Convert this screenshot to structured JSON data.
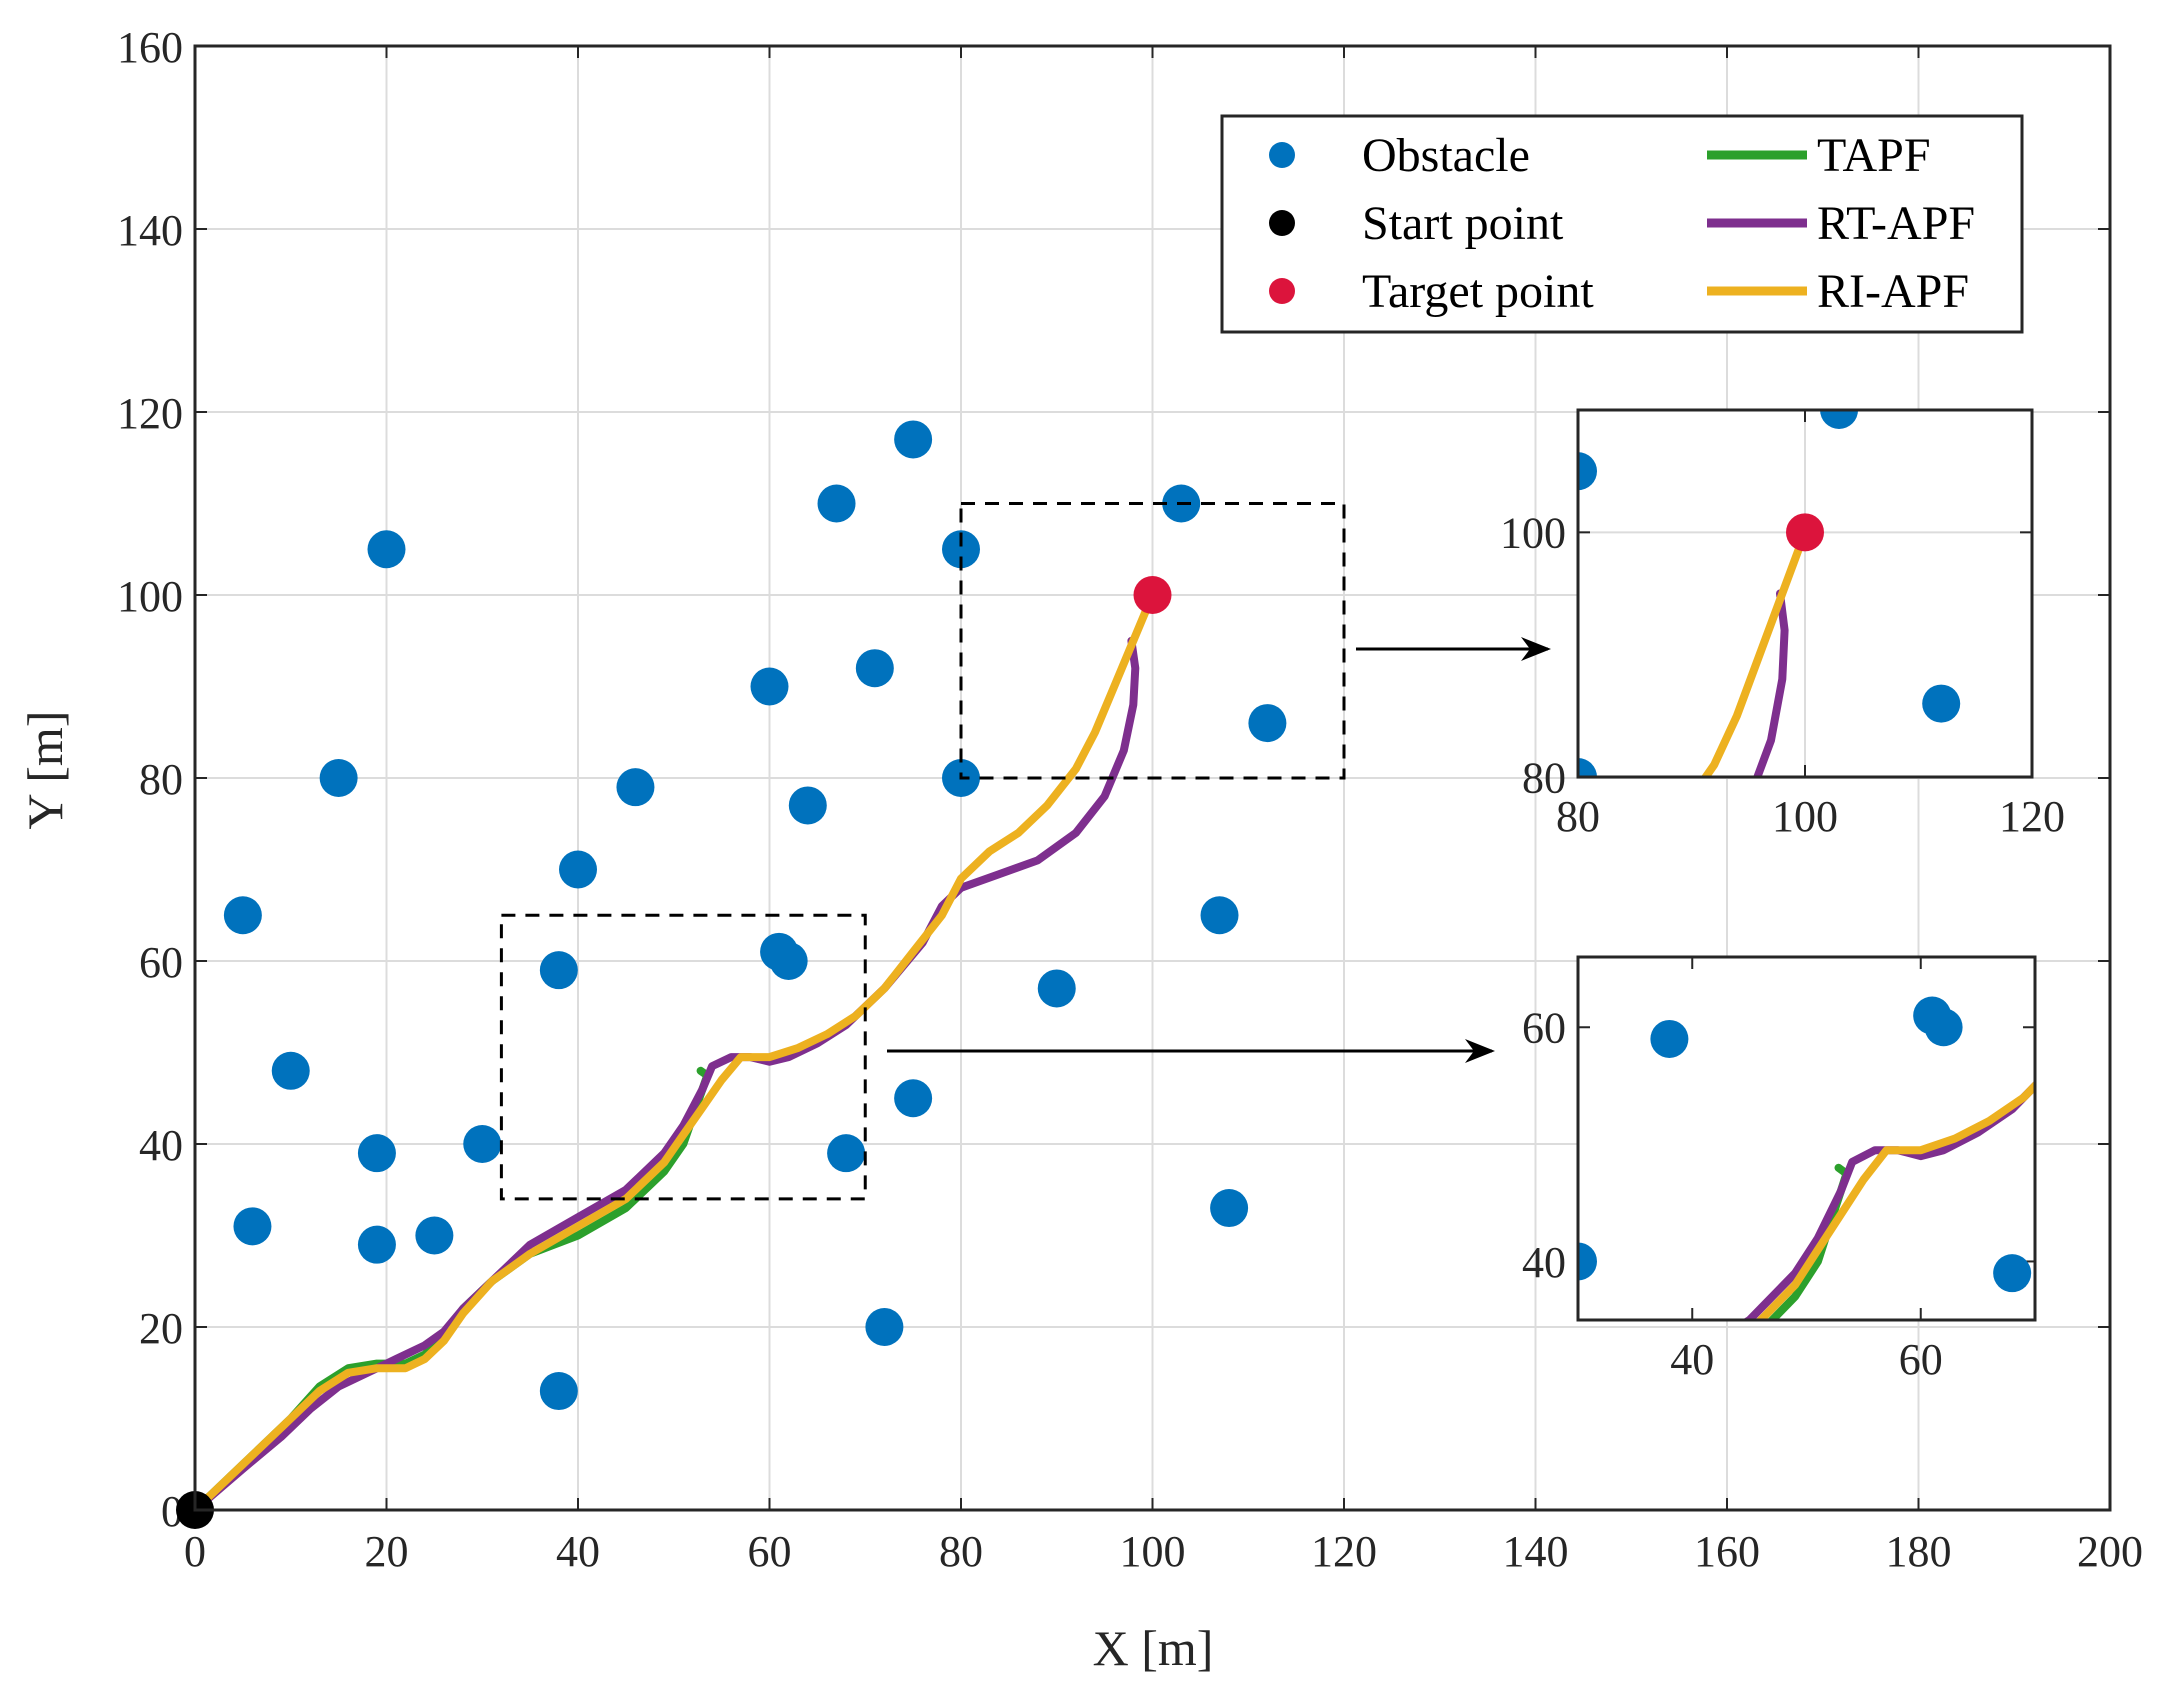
{
  "chart_data": {
    "type": "scatter",
    "xlabel": "X [m]",
    "ylabel": "Y [m]",
    "xlim": [
      0,
      200
    ],
    "ylim": [
      0,
      160
    ],
    "xticks": [
      0,
      20,
      40,
      60,
      80,
      100,
      120,
      140,
      160,
      180,
      200
    ],
    "yticks": [
      0,
      20,
      40,
      60,
      80,
      100,
      120,
      140,
      160
    ],
    "grid": true,
    "legend_position": "top-right",
    "obstacles": {
      "name": "Obstacle",
      "color": "#0072BD",
      "points": [
        [
          5,
          65
        ],
        [
          6,
          31
        ],
        [
          10,
          48
        ],
        [
          15,
          80
        ],
        [
          19,
          39
        ],
        [
          19,
          29
        ],
        [
          20,
          105
        ],
        [
          25,
          30
        ],
        [
          30,
          40
        ],
        [
          38,
          59
        ],
        [
          38,
          13
        ],
        [
          40,
          70
        ],
        [
          46,
          79
        ],
        [
          60,
          90
        ],
        [
          61,
          61
        ],
        [
          62,
          60
        ],
        [
          64,
          77
        ],
        [
          67,
          110
        ],
        [
          68,
          39
        ],
        [
          71,
          92
        ],
        [
          72,
          20
        ],
        [
          75,
          117
        ],
        [
          75,
          45
        ],
        [
          80,
          105
        ],
        [
          80,
          80
        ],
        [
          90,
          57
        ],
        [
          103,
          110
        ],
        [
          107,
          65
        ],
        [
          108,
          33
        ],
        [
          112,
          86
        ]
      ]
    },
    "start": {
      "name": "Start point",
      "color": "#000000",
      "point": [
        0,
        0
      ]
    },
    "target": {
      "name": "Target point",
      "color": "#DC143C",
      "point": [
        100,
        100
      ]
    },
    "series": [
      {
        "name": "TAPF",
        "color": "#2CA02C",
        "points": [
          [
            0,
            0
          ],
          [
            5,
            5
          ],
          [
            10,
            10
          ],
          [
            13,
            13.5
          ],
          [
            16,
            15.5
          ],
          [
            19,
            16
          ],
          [
            22,
            16
          ],
          [
            24,
            17
          ],
          [
            26,
            19
          ],
          [
            28,
            22
          ],
          [
            31,
            25
          ],
          [
            35,
            28
          ],
          [
            40,
            30
          ],
          [
            45,
            33
          ],
          [
            49,
            37
          ],
          [
            51,
            40
          ],
          [
            52,
            43
          ],
          [
            53,
            46
          ],
          [
            53.5,
            47.5
          ],
          [
            52.8,
            48
          ]
        ]
      },
      {
        "name": "RT-APF",
        "color": "#7E2F8E",
        "points": [
          [
            0,
            0
          ],
          [
            5,
            4.5
          ],
          [
            9,
            8
          ],
          [
            12,
            11
          ],
          [
            15,
            13.5
          ],
          [
            18,
            15
          ],
          [
            21,
            16.5
          ],
          [
            24,
            18
          ],
          [
            26,
            19.5
          ],
          [
            28,
            22
          ],
          [
            31,
            25
          ],
          [
            35,
            29
          ],
          [
            40,
            32
          ],
          [
            45,
            35
          ],
          [
            49,
            39
          ],
          [
            51,
            42
          ],
          [
            53,
            46
          ],
          [
            54,
            48.5
          ],
          [
            56,
            49.5
          ],
          [
            58,
            49.5
          ],
          [
            60,
            49
          ],
          [
            62,
            49.5
          ],
          [
            65,
            51
          ],
          [
            68,
            53
          ],
          [
            72,
            57
          ],
          [
            76,
            62
          ],
          [
            78,
            66
          ],
          [
            80,
            68
          ],
          [
            84,
            69.5
          ],
          [
            88,
            71
          ],
          [
            92,
            74
          ],
          [
            95,
            78
          ],
          [
            97,
            83
          ],
          [
            98,
            88
          ],
          [
            98.2,
            92
          ],
          [
            97.8,
            95
          ]
        ]
      },
      {
        "name": "RI-APF",
        "color": "#EDB120",
        "points": [
          [
            0,
            0
          ],
          [
            5,
            5
          ],
          [
            10,
            10
          ],
          [
            13,
            13
          ],
          [
            16,
            15
          ],
          [
            19,
            15.5
          ],
          [
            22,
            15.5
          ],
          [
            24,
            16.5
          ],
          [
            26,
            18.5
          ],
          [
            28,
            21.5
          ],
          [
            31,
            25
          ],
          [
            35,
            28
          ],
          [
            40,
            31
          ],
          [
            45,
            34
          ],
          [
            49,
            38
          ],
          [
            51,
            41
          ],
          [
            53,
            44
          ],
          [
            55,
            47
          ],
          [
            57,
            49.5
          ],
          [
            60,
            49.5
          ],
          [
            63,
            50.5
          ],
          [
            66,
            52
          ],
          [
            69,
            54
          ],
          [
            72,
            57
          ],
          [
            75,
            61
          ],
          [
            78,
            65
          ],
          [
            80,
            69
          ],
          [
            83,
            72
          ],
          [
            86,
            74
          ],
          [
            89,
            77
          ],
          [
            92,
            81
          ],
          [
            94,
            85
          ],
          [
            96,
            90
          ],
          [
            98,
            95
          ],
          [
            100,
            100
          ]
        ]
      }
    ],
    "zoom_boxes": [
      {
        "xlim": [
          80,
          120
        ],
        "ylim": [
          80,
          110
        ]
      },
      {
        "xlim": [
          32,
          70
        ],
        "ylim": [
          34,
          65
        ]
      }
    ],
    "insets": [
      {
        "xlim": [
          80,
          120
        ],
        "ylim": [
          80,
          110
        ],
        "xticks": [
          80,
          100,
          120
        ],
        "yticks": [
          80,
          100
        ],
        "grid": true
      },
      {
        "xlim": [
          30,
          70
        ],
        "ylim": [
          35,
          66
        ],
        "xticks": [
          40,
          60
        ],
        "yticks": [
          40,
          60
        ],
        "grid": false
      }
    ]
  }
}
